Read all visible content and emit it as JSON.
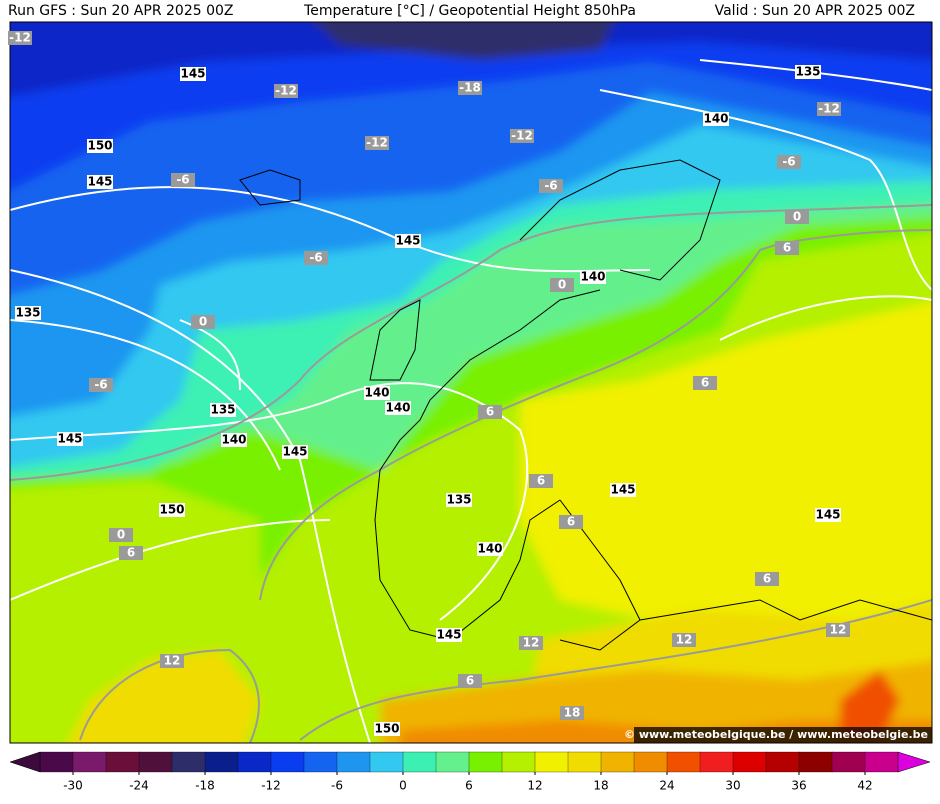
{
  "header": {
    "run": "Run GFS : Sun 20 APR 2025 00Z",
    "title": "Temperature [°C] / Geopotential Height 850hPa",
    "valid": "Valid : Sun 20 APR 2025 00Z"
  },
  "footer": {
    "watermark": "© www.meteobelgique.be / www.meteobelgie.be"
  },
  "height_labels": [
    145,
    150,
    145,
    145,
    140,
    135,
    140,
    140,
    135,
    140,
    145,
    145,
    150,
    135,
    145,
    140,
    145,
    145,
    150,
    135,
    140
  ],
  "temperature_labels": [
    -12,
    -12,
    -18,
    -12,
    -12,
    -6,
    -6,
    -12,
    -6,
    0,
    6,
    -6,
    0,
    0,
    -6,
    6,
    6,
    6,
    6,
    0,
    6,
    6,
    12,
    12,
    12,
    12,
    6,
    18
  ],
  "colorbar": {
    "lim": [
      -33,
      45
    ],
    "ticks": [
      -30,
      -24,
      -18,
      -12,
      -6,
      0,
      6,
      12,
      18,
      24,
      30,
      36,
      42
    ],
    "below_color": "#3c0a3c",
    "above_color": "#dc00dc",
    "colors": [
      "#4a0a4a",
      "#7a1a6a",
      "#6a0f3a",
      "#50103c",
      "#2d2d6a",
      "#0a1e8c",
      "#0a28c8",
      "#0a3cf0",
      "#1464f0",
      "#1e96f0",
      "#32c8f0",
      "#3cf0b4",
      "#64f08c",
      "#78f000",
      "#b4f000",
      "#f0f000",
      "#f0dc00",
      "#f0b400",
      "#f08c00",
      "#f05000",
      "#f01e1e",
      "#dc0000",
      "#b40000",
      "#8c0000",
      "#a00050",
      "#c8008c"
    ]
  }
}
